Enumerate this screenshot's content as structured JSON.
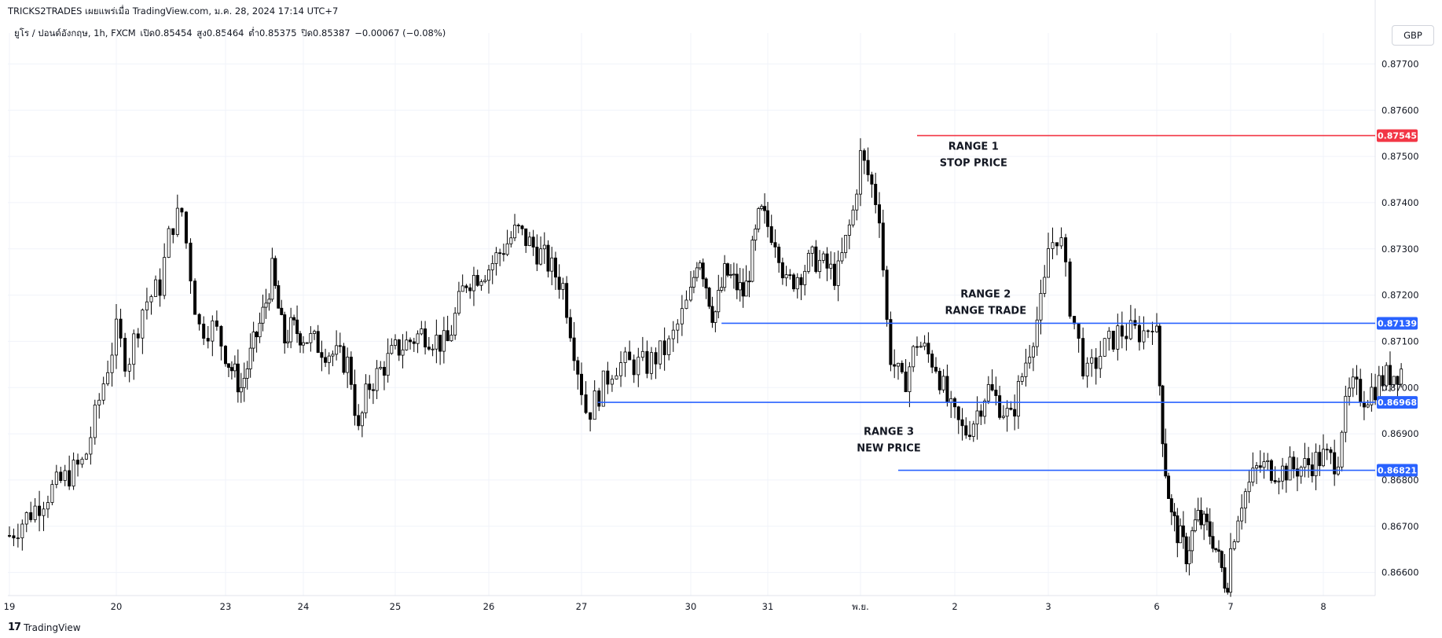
{
  "header": {
    "publish_line": "TRICKS2TRADES เผยแพร่เมื่อ TradingView.com, ม.ค. 28, 2024 17:14 UTC+7"
  },
  "legend": {
    "symbol": "ยูโร / ปอนด์อังกฤษ, 1h, FXCM",
    "open": "เปิด0.85454",
    "high": "สูง0.85464",
    "low": "ต่ำ0.85375",
    "close": "ปิด0.85387",
    "change": "−0.00067 (−0.08%)"
  },
  "currency_button": "GBP",
  "footer": {
    "brand": "TradingView"
  },
  "colors": {
    "up": "#ffffff",
    "down": "#000000",
    "wick": "#000000",
    "stop_line": "#f23645",
    "range_line": "#2962ff",
    "grid": "#f0f3fa",
    "axis_text": "#131722"
  },
  "chart_data": {
    "type": "candlestick",
    "y_axis": {
      "min": 0.8655,
      "max": 0.8775,
      "ticks": [
        "0.87700",
        "0.87600",
        "0.87500",
        "0.87400",
        "0.87300",
        "0.87200",
        "0.87100",
        "0.87000",
        "0.86900",
        "0.86800",
        "0.86700",
        "0.86600"
      ]
    },
    "x_axis": {
      "labels": [
        "19",
        "20",
        "23",
        "24",
        "25",
        "26",
        "27",
        "30",
        "31",
        "พ.ย.",
        "2",
        "3",
        "6",
        "7",
        "8"
      ]
    },
    "price_lines": [
      {
        "id": "stop",
        "price": 0.87545,
        "label": "0.87545",
        "color": "#f23645",
        "from_day": 9.6
      },
      {
        "id": "range2",
        "price": 0.87139,
        "label": "0.87139",
        "color": "#2962ff",
        "from_day": 7.4
      },
      {
        "id": "range3-top",
        "price": 0.86968,
        "label": "0.86968",
        "color": "#2962ff",
        "from_day": 6.15
      },
      {
        "id": "range3-bottom",
        "price": 0.86821,
        "label": "0.86821",
        "color": "#2962ff",
        "from_day": 9.4
      }
    ],
    "annotations": [
      {
        "lines": [
          "RANGE 1",
          "STOP PRICE"
        ],
        "day": 10.2,
        "price": 0.87515
      },
      {
        "lines": [
          "RANGE 2",
          "RANGE TRADE"
        ],
        "day": 10.33,
        "price": 0.87195
      },
      {
        "lines": [
          "RANGE 3",
          "NEW PRICE"
        ],
        "day": 9.3,
        "price": 0.86898
      }
    ],
    "close_path": [
      [
        0,
        0.8668
      ],
      [
        0.4,
        0.8678
      ],
      [
        0.7,
        0.8684
      ],
      [
        0.9,
        0.8703
      ],
      [
        1.0,
        0.8712
      ],
      [
        1.1,
        0.8705
      ],
      [
        1.25,
        0.8718
      ],
      [
        1.4,
        0.8722
      ],
      [
        1.5,
        0.8735
      ],
      [
        1.6,
        0.8738
      ],
      [
        1.75,
        0.8713
      ],
      [
        1.9,
        0.8713
      ],
      [
        2.05,
        0.8705
      ],
      [
        2.2,
        0.87
      ],
      [
        2.5,
        0.8717
      ],
      [
        2.6,
        0.8725
      ],
      [
        2.75,
        0.871
      ],
      [
        2.85,
        0.8713
      ],
      [
        3.1,
        0.871
      ],
      [
        3.5,
        0.8705
      ],
      [
        3.6,
        0.869
      ],
      [
        3.7,
        0.87
      ],
      [
        4.0,
        0.8708
      ],
      [
        4.3,
        0.8712
      ],
      [
        4.55,
        0.8709
      ],
      [
        4.75,
        0.8723
      ],
      [
        5.0,
        0.8726
      ],
      [
        5.3,
        0.8734
      ],
      [
        5.6,
        0.8728
      ],
      [
        5.8,
        0.8722
      ],
      [
        6.0,
        0.87
      ],
      [
        6.05,
        0.8694
      ],
      [
        6.3,
        0.8705
      ],
      [
        6.6,
        0.8705
      ],
      [
        6.8,
        0.8709
      ],
      [
        7.0,
        0.872
      ],
      [
        7.1,
        0.873
      ],
      [
        7.3,
        0.8715
      ],
      [
        7.45,
        0.8725
      ],
      [
        7.7,
        0.872
      ],
      [
        7.9,
        0.8738
      ],
      [
        8.1,
        0.8732
      ],
      [
        8.2,
        0.8722
      ],
      [
        8.5,
        0.8728
      ],
      [
        8.75,
        0.8724
      ],
      [
        8.92,
        0.8738
      ],
      [
        9.0,
        0.875
      ],
      [
        9.1,
        0.8745
      ],
      [
        9.2,
        0.8738
      ],
      [
        9.3,
        0.8708
      ],
      [
        9.45,
        0.87
      ],
      [
        9.6,
        0.871
      ],
      [
        9.8,
        0.8705
      ],
      [
        9.95,
        0.8695
      ],
      [
        10.1,
        0.869
      ],
      [
        10.2,
        0.8693
      ],
      [
        10.35,
        0.87
      ],
      [
        10.6,
        0.8693
      ],
      [
        10.75,
        0.8705
      ],
      [
        10.95,
        0.872
      ],
      [
        11.0,
        0.873
      ],
      [
        11.1,
        0.8734
      ],
      [
        11.2,
        0.8718
      ],
      [
        11.35,
        0.8702
      ],
      [
        11.5,
        0.8708
      ],
      [
        11.65,
        0.8712
      ],
      [
        11.9,
        0.8712
      ],
      [
        11.98,
        0.8716
      ],
      [
        12.05,
        0.8698
      ],
      [
        12.1,
        0.8685
      ],
      [
        12.2,
        0.8672
      ],
      [
        12.4,
        0.8664
      ],
      [
        12.55,
        0.8672
      ],
      [
        12.75,
        0.8668
      ],
      [
        12.85,
        0.8662
      ],
      [
        12.95,
        0.8657
      ],
      [
        13.0,
        0.8665
      ],
      [
        13.1,
        0.8675
      ],
      [
        13.3,
        0.8683
      ],
      [
        13.55,
        0.8682
      ],
      [
        13.8,
        0.8683
      ],
      [
        14.0,
        0.8685
      ],
      [
        14.15,
        0.8684
      ],
      [
        14.2,
        0.8692
      ],
      [
        14.3,
        0.87
      ],
      [
        14.45,
        0.8698
      ],
      [
        14.65,
        0.8702
      ],
      [
        14.85,
        0.8704
      ]
    ]
  }
}
